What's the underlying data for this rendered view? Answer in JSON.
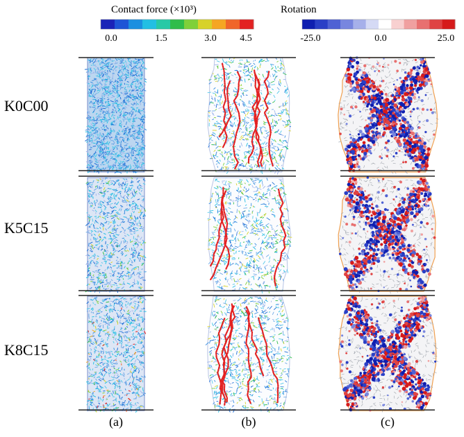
{
  "colorbars": {
    "contact_force": {
      "title": "Contact force (×10³)",
      "ticks": [
        "0.0",
        "1.5",
        "3.0",
        "4.5"
      ],
      "colors": [
        "#1a23b8",
        "#1e55d6",
        "#1b8fe0",
        "#22bfe3",
        "#27c9a6",
        "#2fbd4a",
        "#7fd03a",
        "#d7d22a",
        "#f5a623",
        "#f0652a",
        "#e32222"
      ]
    },
    "rotation": {
      "title": "Rotation",
      "ticks": [
        "-25.0",
        "0.0",
        "25.0"
      ],
      "colors": [
        "#0f1fb0",
        "#2a3fc6",
        "#4f62d4",
        "#7886df",
        "#a6b0ea",
        "#d5daf5",
        "#ffffff",
        "#f8d0d0",
        "#f0a0a0",
        "#e87070",
        "#df4343",
        "#d61a1a"
      ]
    }
  },
  "rows": [
    {
      "label": "K0C00"
    },
    {
      "label": "K5C15"
    },
    {
      "label": "K8C15"
    }
  ],
  "columns": [
    {
      "label": "(a)"
    },
    {
      "label": "(b)"
    },
    {
      "label": "(c)"
    }
  ]
}
